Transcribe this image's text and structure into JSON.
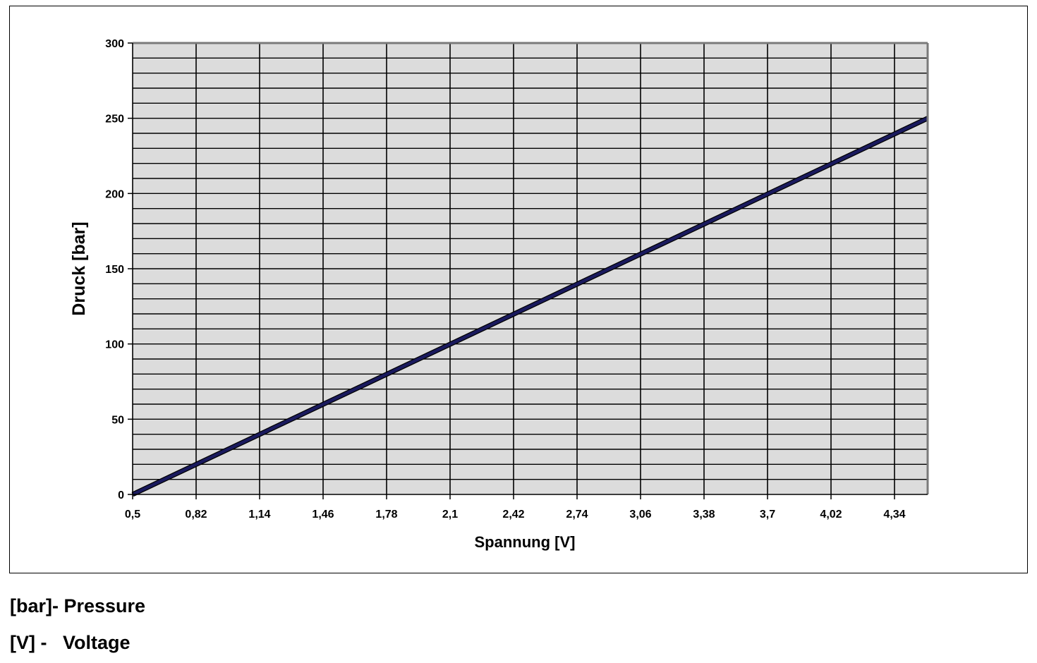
{
  "chart_data": {
    "type": "line",
    "xlabel": "Spannung [V]",
    "ylabel": "Druck [bar]",
    "x_ticks": [
      "0,5",
      "0,82",
      "1,14",
      "1,46",
      "1,78",
      "2,1",
      "2,42",
      "2,74",
      "3,06",
      "3,38",
      "3,7",
      "4,02",
      "4,34"
    ],
    "y_ticks": [
      "0",
      "50",
      "100",
      "150",
      "200",
      "250",
      "300"
    ],
    "xlim": [
      0.5,
      4.5
    ],
    "ylim": [
      0,
      300
    ],
    "grid": true,
    "plot_background": "#dcdcdc",
    "series": [
      {
        "color": "#1a1a5e",
        "x": [
          0.5,
          4.5
        ],
        "y": [
          0,
          250
        ]
      }
    ]
  },
  "legend_notes": [
    "[bar]- Pressure",
    "[V] -   Voltage"
  ]
}
